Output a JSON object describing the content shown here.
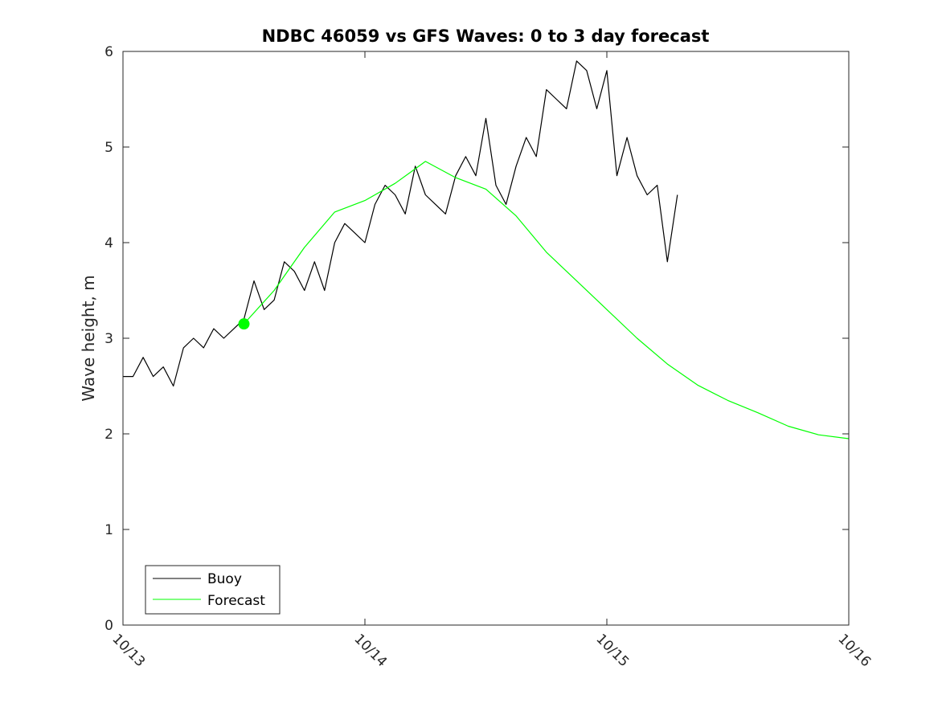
{
  "chart_data": {
    "type": "line",
    "title": "NDBC 46059 vs GFS Waves: 0 to 3 day forecast",
    "xlabel": "",
    "ylabel": "Wave height, m",
    "x_tick_labels": [
      "10/13",
      "10/14",
      "10/15",
      "10/16"
    ],
    "y_ticks": [
      0,
      1,
      2,
      3,
      4,
      5,
      6
    ],
    "xlim": [
      "10/13 00:00",
      "10/16 00:00"
    ],
    "ylim": [
      0,
      6
    ],
    "grid": false,
    "legend": {
      "position": "bottom-left",
      "entries": [
        "Buoy",
        "Forecast"
      ]
    },
    "series": [
      {
        "name": "Buoy",
        "color": "#000000",
        "x": [
          "10/13 00:00",
          "10/13 01:00",
          "10/13 02:00",
          "10/13 03:00",
          "10/13 04:00",
          "10/13 05:00",
          "10/13 06:00",
          "10/13 07:00",
          "10/13 08:00",
          "10/13 09:00",
          "10/13 10:00",
          "10/13 11:00",
          "10/13 12:00",
          "10/13 13:00",
          "10/13 14:00",
          "10/13 15:00",
          "10/13 16:00",
          "10/13 17:00",
          "10/13 18:00",
          "10/13 19:00",
          "10/13 20:00",
          "10/13 21:00",
          "10/13 22:00",
          "10/13 23:00",
          "10/14 00:00",
          "10/14 01:00",
          "10/14 02:00",
          "10/14 03:00",
          "10/14 04:00",
          "10/14 05:00",
          "10/14 06:00",
          "10/14 07:00",
          "10/14 08:00",
          "10/14 09:00",
          "10/14 10:00",
          "10/14 11:00",
          "10/14 12:00",
          "10/14 13:00",
          "10/14 14:00",
          "10/14 15:00",
          "10/14 16:00",
          "10/14 17:00",
          "10/14 18:00",
          "10/14 19:00",
          "10/14 20:00",
          "10/14 21:00",
          "10/14 22:00",
          "10/14 23:00",
          "10/15 00:00",
          "10/15 01:00",
          "10/15 02:00",
          "10/15 03:00",
          "10/15 04:00",
          "10/15 05:00",
          "10/15 06:00",
          "10/15 07:00"
        ],
        "values": [
          2.6,
          2.6,
          2.8,
          2.6,
          2.7,
          2.5,
          2.9,
          3.0,
          2.9,
          3.1,
          3.0,
          3.1,
          3.2,
          3.6,
          3.3,
          3.4,
          3.8,
          3.7,
          3.5,
          3.8,
          3.5,
          4.0,
          4.2,
          4.1,
          4.0,
          4.4,
          4.6,
          4.5,
          4.3,
          4.8,
          4.5,
          4.4,
          4.3,
          4.7,
          4.9,
          4.7,
          5.3,
          4.6,
          4.4,
          4.8,
          5.1,
          4.9,
          5.6,
          5.5,
          5.4,
          5.9,
          5.8,
          5.4,
          5.8,
          4.7,
          5.1,
          4.7,
          4.5,
          4.6,
          3.8,
          4.5
        ]
      },
      {
        "name": "Forecast",
        "color": "#00ff00",
        "x": [
          "10/13 12:00",
          "10/13 15:00",
          "10/13 18:00",
          "10/13 21:00",
          "10/14 00:00",
          "10/14 03:00",
          "10/14 06:00",
          "10/14 09:00",
          "10/14 12:00",
          "10/14 15:00",
          "10/14 18:00",
          "10/14 21:00",
          "10/15 00:00",
          "10/15 03:00",
          "10/15 06:00",
          "10/15 09:00",
          "10/15 12:00",
          "10/15 15:00",
          "10/15 18:00",
          "10/15 21:00",
          "10/16 00:00"
        ],
        "values": [
          3.15,
          3.5,
          3.95,
          4.32,
          4.44,
          4.62,
          4.85,
          4.68,
          4.56,
          4.28,
          3.9,
          3.6,
          3.3,
          3.0,
          2.73,
          2.51,
          2.35,
          2.22,
          2.08,
          1.99,
          1.95
        ],
        "start_marker": true
      }
    ]
  }
}
